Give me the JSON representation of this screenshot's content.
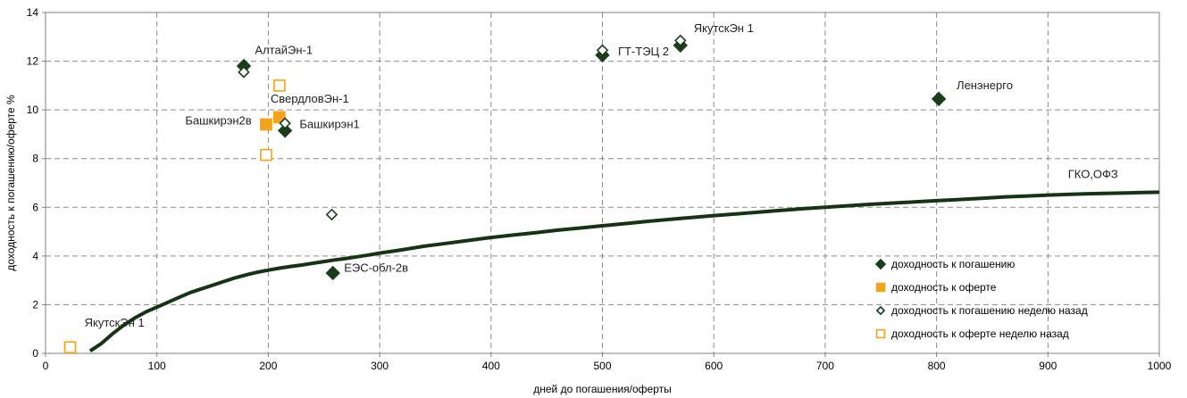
{
  "chart_data": {
    "type": "scatter",
    "xlabel": "дней до погашения/оферты",
    "ylabel": "доходность к погашению/оферте %",
    "xlim": [
      0,
      1000
    ],
    "ylim": [
      0,
      14
    ],
    "xticks": [
      0,
      100,
      200,
      300,
      400,
      500,
      600,
      700,
      800,
      900,
      1000
    ],
    "yticks": [
      0,
      2,
      4,
      6,
      8,
      10,
      12,
      14
    ],
    "grid": true,
    "legend_position": "bottom-right",
    "colors": {
      "ytm": "#1b3d1b",
      "ytp": "#f5a31a",
      "curve": "#163316",
      "grid": "#8a8a8a"
    },
    "curve": {
      "label": "ГКО,ОФЗ",
      "x": [
        40,
        50,
        60,
        70,
        80,
        90,
        100,
        110,
        120,
        130,
        140,
        150,
        160,
        170,
        180,
        190,
        200,
        210,
        220,
        230,
        240,
        250,
        260,
        270,
        280,
        290,
        300,
        320,
        340,
        360,
        380,
        400,
        420,
        440,
        460,
        480,
        500,
        520,
        540,
        560,
        580,
        600,
        620,
        640,
        660,
        680,
        700,
        720,
        740,
        760,
        780,
        800,
        820,
        840,
        860,
        880,
        900,
        920,
        940,
        960,
        980,
        1000
      ],
      "y": [
        0.1,
        0.4,
        0.8,
        1.15,
        1.45,
        1.7,
        1.9,
        2.1,
        2.3,
        2.5,
        2.65,
        2.8,
        2.95,
        3.1,
        3.22,
        3.33,
        3.42,
        3.5,
        3.57,
        3.63,
        3.7,
        3.77,
        3.84,
        3.9,
        3.97,
        4.04,
        4.12,
        4.25,
        4.4,
        4.52,
        4.64,
        4.76,
        4.86,
        4.96,
        5.06,
        5.15,
        5.24,
        5.33,
        5.42,
        5.5,
        5.58,
        5.66,
        5.73,
        5.8,
        5.87,
        5.94,
        6.0,
        6.06,
        6.12,
        6.17,
        6.22,
        6.27,
        6.32,
        6.37,
        6.42,
        6.46,
        6.5,
        6.53,
        6.56,
        6.58,
        6.6,
        6.62
      ]
    },
    "series": [
      {
        "name": "доходность к погашению",
        "marker": "diamond-filled",
        "points": [
          {
            "x": 178,
            "y": 11.8
          },
          {
            "x": 215,
            "y": 9.15
          },
          {
            "x": 500,
            "y": 12.25
          },
          {
            "x": 570,
            "y": 12.65
          },
          {
            "x": 802,
            "y": 10.45
          },
          {
            "x": 258,
            "y": 3.3
          }
        ]
      },
      {
        "name": "доходность к оферте",
        "marker": "square-filled",
        "points": [
          {
            "x": 198,
            "y": 9.4
          },
          {
            "x": 210,
            "y": 9.7
          }
        ]
      },
      {
        "name": "доходность к погашению неделю назад",
        "marker": "diamond-open",
        "points": [
          {
            "x": 178,
            "y": 11.55
          },
          {
            "x": 215,
            "y": 9.45
          },
          {
            "x": 500,
            "y": 12.45
          },
          {
            "x": 570,
            "y": 12.85
          },
          {
            "x": 257,
            "y": 5.7
          }
        ]
      },
      {
        "name": "доходность к оферте неделю назад",
        "marker": "square-open",
        "points": [
          {
            "x": 22,
            "y": 0.25
          },
          {
            "x": 198,
            "y": 8.15
          },
          {
            "x": 210,
            "y": 11.0
          }
        ]
      }
    ],
    "annotations": [
      {
        "text": "АлтайЭн-1",
        "x": 188,
        "y": 12.3,
        "anchor": "start"
      },
      {
        "text": "СвердловЭн-1",
        "x": 202,
        "y": 10.3,
        "anchor": "start"
      },
      {
        "text": "Башкирэн2в",
        "x": 185,
        "y": 9.4,
        "anchor": "end"
      },
      {
        "text": "Башкирэн1",
        "x": 228,
        "y": 9.25,
        "anchor": "start"
      },
      {
        "text": "ГТ-ТЭЦ 2",
        "x": 514,
        "y": 12.25,
        "anchor": "start"
      },
      {
        "text": "ЯкутскЭн 1",
        "x": 582,
        "y": 13.2,
        "anchor": "start"
      },
      {
        "text": "Ленэнерго",
        "x": 818,
        "y": 10.85,
        "anchor": "start"
      },
      {
        "text": "ЕЭС-обл-2в",
        "x": 268,
        "y": 3.35,
        "anchor": "start"
      },
      {
        "text": "ЯкутскЭн 1",
        "x": 35,
        "y": 1.1,
        "anchor": "start"
      },
      {
        "text": "ГКО,ОФЗ",
        "x": 918,
        "y": 7.2,
        "anchor": "start"
      }
    ]
  }
}
